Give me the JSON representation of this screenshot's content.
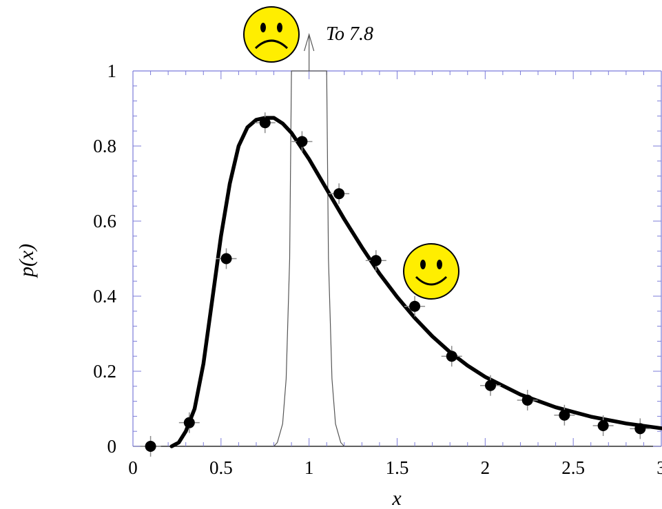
{
  "chart_data": {
    "type": "scatter",
    "xlabel": "x",
    "ylabel": "p(x)",
    "xlim": [
      0,
      3
    ],
    "ylim": [
      0,
      1
    ],
    "grid": false,
    "x_ticks": [
      0,
      0.5,
      1,
      1.5,
      2,
      2.5,
      3
    ],
    "x_tick_labels": [
      "0",
      "0.5",
      "1",
      "1.5",
      "2",
      "2.5",
      "3"
    ],
    "y_ticks": [
      0,
      0.2,
      0.4,
      0.6,
      0.8,
      1
    ],
    "y_tick_labels": [
      "0",
      "0.2",
      "0.4",
      "0.6",
      "0.8",
      "1"
    ],
    "series": [
      {
        "kind": "points",
        "marker": "filled-circle-with-error-cross",
        "x": [
          0.1,
          0.32,
          0.53,
          0.75,
          0.96,
          1.17,
          1.38,
          1.6,
          1.81,
          2.03,
          2.24,
          2.45,
          2.67,
          2.88
        ],
        "y": [
          0.0,
          0.063,
          0.5,
          0.862,
          0.812,
          0.673,
          0.495,
          0.373,
          0.24,
          0.162,
          0.123,
          0.083,
          0.055,
          0.047
        ]
      },
      {
        "kind": "thick-curve",
        "x": [
          0.22,
          0.26,
          0.3,
          0.35,
          0.4,
          0.45,
          0.5,
          0.55,
          0.6,
          0.65,
          0.7,
          0.75,
          0.8,
          0.85,
          0.9,
          0.95,
          1.0,
          1.1,
          1.2,
          1.3,
          1.4,
          1.5,
          1.6,
          1.7,
          1.8,
          1.9,
          2.0,
          2.2,
          2.4,
          2.6,
          2.8,
          3.0
        ],
        "y": [
          0.0,
          0.01,
          0.04,
          0.1,
          0.22,
          0.39,
          0.56,
          0.7,
          0.8,
          0.85,
          0.87,
          0.875,
          0.875,
          0.86,
          0.835,
          0.8,
          0.765,
          0.685,
          0.605,
          0.53,
          0.46,
          0.398,
          0.342,
          0.293,
          0.251,
          0.215,
          0.185,
          0.138,
          0.104,
          0.079,
          0.061,
          0.048
        ]
      },
      {
        "kind": "thin-peak",
        "x": [
          0.8,
          0.82,
          0.85,
          0.87,
          0.89,
          0.9,
          0.92,
          1.08,
          1.1,
          1.11,
          1.13,
          1.15,
          1.18,
          1.2
        ],
        "y": [
          0.0,
          0.01,
          0.06,
          0.18,
          0.5,
          1.0,
          1.0,
          1.0,
          1.0,
          0.5,
          0.18,
          0.06,
          0.01,
          0.0
        ],
        "peak_value": 7.8
      }
    ],
    "annotations": [
      {
        "text": "To 7.8",
        "attached_to": "thin-peak"
      },
      {
        "icon": "sad-face-icon",
        "attached_to": "thin-peak"
      },
      {
        "icon": "smiley-face-icon",
        "attached_to": "thick-curve"
      }
    ],
    "colors": {
      "frame": "#7b7bd9",
      "curve": "#000000",
      "peak_line": "#555555",
      "error_bar": "#8c8c8c",
      "face_fill": "#ffee00",
      "face_stroke": "#000000"
    }
  }
}
